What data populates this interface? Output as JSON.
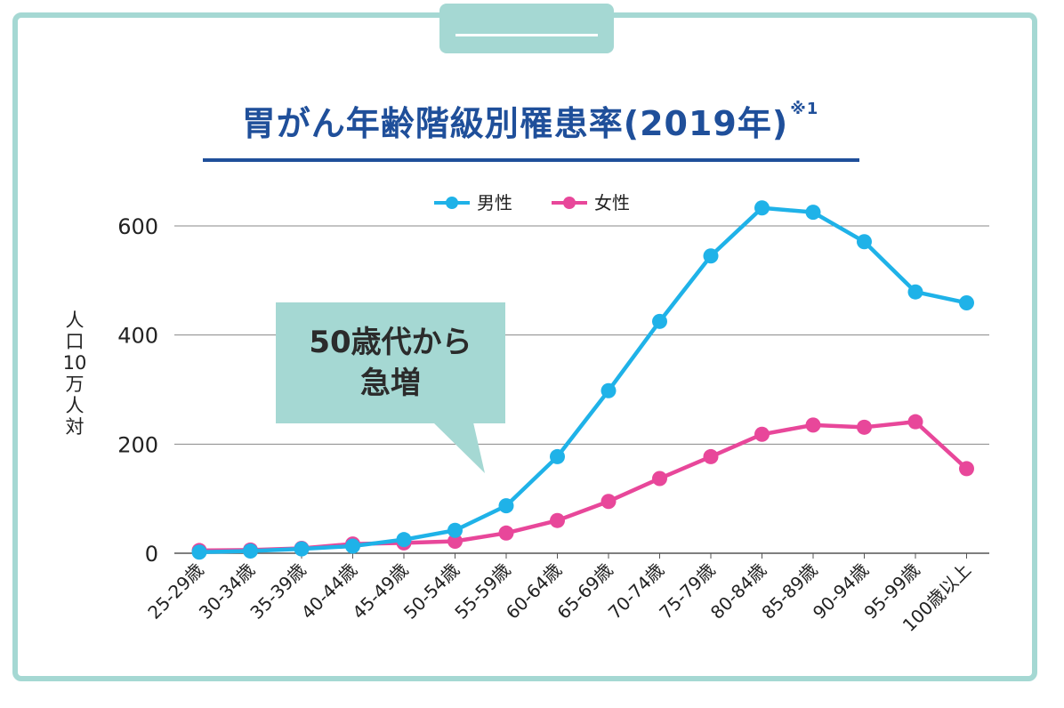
{
  "tab": {},
  "title": "胃がん年齢階級別罹患率(2019年)",
  "title_note": "※1",
  "callout": {
    "line1": "50歳代から",
    "line2": "急増"
  },
  "chart_data": {
    "type": "line",
    "title": "胃がん年齢階級別罹患率(2019年)",
    "ylabel": "人口10万人対",
    "ylim": [
      0,
      600
    ],
    "yticks": [
      0,
      200,
      400,
      600
    ],
    "grid": true,
    "legend_position": "top",
    "categories": [
      "25-29歳",
      "30-34歳",
      "35-39歳",
      "40-44歳",
      "45-49歳",
      "50-54歳",
      "55-59歳",
      "60-64歳",
      "65-69歳",
      "70-74歳",
      "75-79歳",
      "80-84歳",
      "85-89歳",
      "90-94歳",
      "95-99歳",
      "100歳以上"
    ],
    "series": [
      {
        "name": "男性",
        "color": "#1fb2e8",
        "values": [
          2,
          4,
          8,
          13,
          25,
          42,
          87,
          177,
          298,
          425,
          545,
          633,
          625,
          571,
          479,
          459
        ]
      },
      {
        "name": "女性",
        "color": "#e8479a",
        "values": [
          5,
          6,
          9,
          17,
          19,
          22,
          37,
          60,
          95,
          137,
          177,
          218,
          235,
          231,
          241,
          155
        ]
      }
    ]
  }
}
